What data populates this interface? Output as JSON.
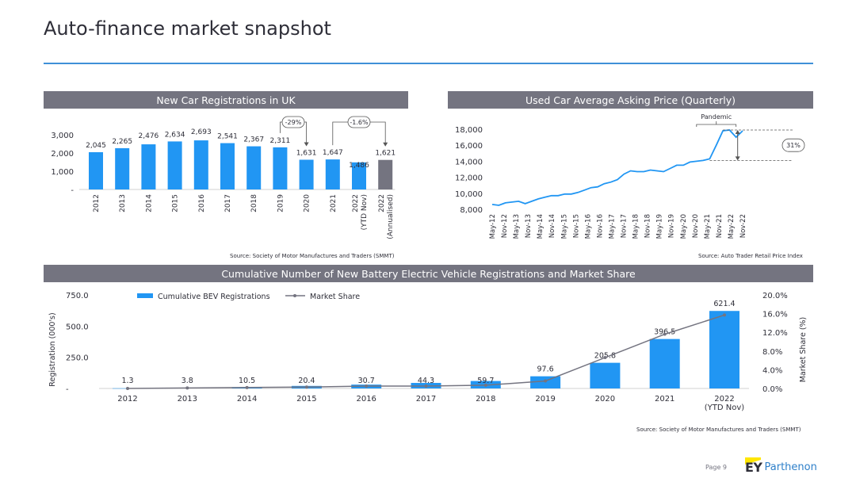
{
  "page": {
    "title": "Auto-finance market snapshot",
    "page_number": "Page 9"
  },
  "brand": {
    "ey": "EY",
    "parthenon": "Parthenon",
    "accent": "#2196f3",
    "grey": "#747480",
    "header_grey": "#747480"
  },
  "panels": {
    "new_car": {
      "header": "New Car Registrations in UK",
      "source": "Source: Society of Motor Manufactures and Traders (SMMT)"
    },
    "used_car": {
      "header": "Used Car Average Asking Price (Quarterly)",
      "source": "Source: Auto Trader Retail Price Index"
    },
    "bev": {
      "header": "Cumulative Number of New Battery Electric Vehicle Registrations and Market Share",
      "source": "Source: Society of Motor Manufactures and Traders (SMMT)"
    }
  },
  "chart_data": [
    {
      "type": "bar",
      "title": "New Car Registrations in UK",
      "categories": [
        "2012",
        "2013",
        "2014",
        "2015",
        "2016",
        "2017",
        "2018",
        "2019",
        "2020",
        "2021",
        "2022\n(YTD Nov)",
        "2022\n(Annualised)"
      ],
      "values": [
        2045,
        2265,
        2476,
        2634,
        2693,
        2541,
        2367,
        2311,
        1631,
        1647,
        1486,
        1621
      ],
      "value_labels": [
        "2,045",
        "2,265",
        "2,476",
        "2,634",
        "2,693",
        "2,541",
        "2,367",
        "2,311",
        "1,631",
        "1,647",
        "1,486",
        "1,621"
      ],
      "highlight_last": true,
      "yticks": [
        "3,000",
        "2,000",
        "1,000",
        "-"
      ],
      "ylim": [
        0,
        3000
      ],
      "annotations": [
        {
          "text": "-29%",
          "from": "2019",
          "to": "2020"
        },
        {
          "text": "-1.6%",
          "from": "2021",
          "to": "2022\n(Annualised)"
        }
      ]
    },
    {
      "type": "line",
      "title": "Used Car Average Asking Price (Quarterly)",
      "x_ticks": [
        "May-12",
        "Nov-12",
        "May-13",
        "Nov-13",
        "May-14",
        "Nov-14",
        "May-15",
        "Nov-15",
        "May-16",
        "Nov-16",
        "May-17",
        "Nov-17",
        "May-18",
        "Nov-18",
        "May-19",
        "Nov-19",
        "May-20",
        "Nov-20",
        "May-21",
        "Nov-21",
        "May-22",
        "Nov-22"
      ],
      "values": [
        8600,
        8500,
        8800,
        8900,
        9000,
        8700,
        9000,
        9300,
        9500,
        9700,
        9700,
        9900,
        9900,
        10100,
        10400,
        10700,
        10800,
        11200,
        11400,
        11700,
        12400,
        12800,
        12700,
        12700,
        12900,
        12800,
        12700,
        13100,
        13500,
        13500,
        13900,
        14000,
        14100,
        14300,
        16000,
        17800,
        17900,
        17000,
        17800
      ],
      "ylim": [
        8000,
        18000
      ],
      "yticks": [
        "18,000",
        "16,000",
        "14,000",
        "12,000",
        "10,000",
        "8,000"
      ],
      "annotations": [
        {
          "text": "Pandemic"
        },
        {
          "text": "31%"
        }
      ]
    },
    {
      "type": "bar+line",
      "title": "Cumulative Number of New Battery Electric Vehicle Registrations and Market Share",
      "categories": [
        "2012",
        "2013",
        "2014",
        "2015",
        "2016",
        "2017",
        "2018",
        "2019",
        "2020",
        "2021",
        "2022\n(YTD Nov)"
      ],
      "series": [
        {
          "name": "Cumulative BEV Registrations",
          "values": [
            1.3,
            3.8,
            10.5,
            20.4,
            30.7,
            44.3,
            59.7,
            97.6,
            205.8,
            396.5,
            621.4
          ],
          "labels": [
            "1.3",
            "3.8",
            "10.5",
            "20.4",
            "30.7",
            "44.3",
            "59.7",
            "97.6",
            "205.8",
            "396.5",
            "621.4"
          ]
        },
        {
          "name": "Market Share",
          "values": [
            0.0,
            0.1,
            0.2,
            0.3,
            0.5,
            0.5,
            0.7,
            1.6,
            6.6,
            11.6,
            15.7
          ]
        }
      ],
      "ylabel": "Registration (000's)",
      "y2label": "Market Share (%)",
      "ylim": [
        0,
        750
      ],
      "y2lim": [
        0,
        20
      ],
      "yticks": [
        "750.0",
        "500.0",
        "250.0",
        "-"
      ],
      "y2ticks": [
        "20.0%",
        "16.0%",
        "12.0%",
        "8.0%",
        "4.0%",
        "0.0%"
      ]
    }
  ]
}
